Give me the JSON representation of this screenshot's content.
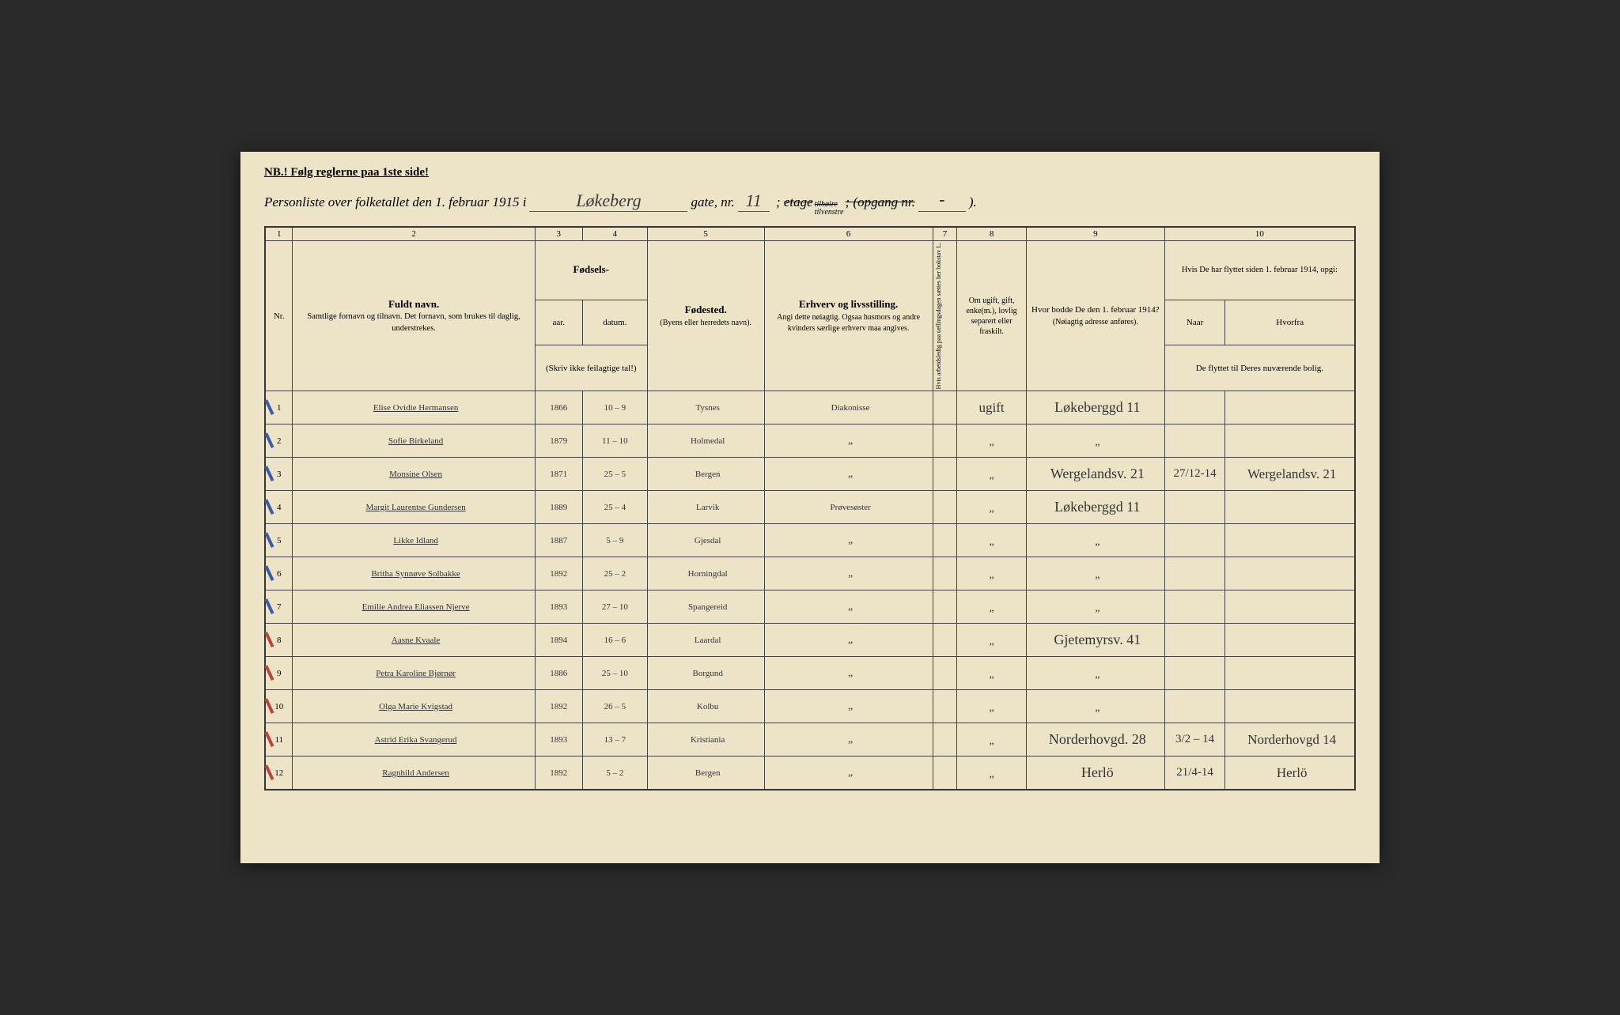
{
  "header": {
    "nb": "NB.! Følg reglerne paa 1ste side!",
    "title_prefix": "Personliste over folketallet den 1. februar 1915 i",
    "street": "Løkeberg",
    "gate_label": "gate, nr.",
    "gate_nr": "11",
    "etage_label": "etage",
    "tilhoire": "tilhøire",
    "tilvenstre": "tilvenstre",
    "opgang_label": "; (opgang nr.",
    "paren": ")."
  },
  "columns": {
    "c1": "1",
    "c2": "2",
    "c3": "3",
    "c4": "4",
    "c5": "5",
    "c6": "6",
    "c7": "7",
    "c8": "8",
    "c9": "9",
    "c10": "10",
    "nr": "Nr.",
    "navn_head": "Fuldt navn.",
    "navn_sub": "Samtlige fornavn og tilnavn. Det fornavn, som brukes til daglig, understrekes.",
    "fodsels": "Fødsels-",
    "aar": "aar.",
    "datum": "datum.",
    "fodsels_note": "(Skriv ikke feilagtige tal!)",
    "fodested": "Fødested.",
    "fodested_sub": "(Byens eller herredets navn).",
    "erhverv": "Erhverv og livsstilling.",
    "erhverv_sub": "Angi dette nøiagtig. Ogsaa husmors og andre kvinders særlige erhverv maa angives.",
    "col7": "Hvis arbeidsledig paa tællingsdagen sættes her bokstav L.",
    "col8": "Om ugift, gift, enke(m.), lovlig separert eller fraskilt.",
    "col9": "Hvor bodde De den 1. februar 1914?",
    "col9_sub": "(Nøiagtig adresse anføres).",
    "col10": "Hvis De har flyttet siden 1. februar 1914, opgi:",
    "naar": "Naar",
    "hvorfra": "Hvorfra",
    "col10_sub": "De flyttet til Deres nuværende bolig."
  },
  "rows": [
    {
      "nr": "1",
      "mark": "blue",
      "name": "Elise Ovidie Hermansen",
      "yr": "1866",
      "dt": "10 – 9",
      "place": "Tysnes",
      "occ": "Diakonisse",
      "stat": "ugift",
      "addr": "Løkeberggd 11",
      "naar": "",
      "fra": ""
    },
    {
      "nr": "2",
      "mark": "blue",
      "name": "Sofie Birkeland",
      "yr": "1879",
      "dt": "11 – 10",
      "place": "Holmedal",
      "occ": "\"",
      "stat": "\"",
      "addr": "\"",
      "naar": "",
      "fra": ""
    },
    {
      "nr": "3",
      "mark": "blue",
      "name": "Monsine Olsen",
      "yr": "1871",
      "dt": "25 – 5",
      "place": "Bergen",
      "occ": "\"",
      "stat": "\"",
      "addr": "Wergelandsv. 21",
      "naar": "27/12-14",
      "fra": "Wergelandsv. 21"
    },
    {
      "nr": "4",
      "mark": "blue",
      "name": "Margit Laurentse Gundersen",
      "yr": "1889",
      "dt": "25 – 4",
      "place": "Larvik",
      "occ": "Prøvesøster",
      "stat": "\"",
      "addr": "Løkeberggd 11",
      "naar": "",
      "fra": ""
    },
    {
      "nr": "5",
      "mark": "blue",
      "name": "Likke Idland",
      "yr": "1887",
      "dt": "5 – 9",
      "place": "Gjesdal",
      "occ": "\"",
      "stat": "\"",
      "addr": "\"",
      "naar": "",
      "fra": ""
    },
    {
      "nr": "6",
      "mark": "blue",
      "name": "Britha Synnøve Solbakke",
      "yr": "1892",
      "dt": "25 – 2",
      "place": "Horningdal",
      "occ": "\"",
      "stat": "\"",
      "addr": "\"",
      "naar": "",
      "fra": ""
    },
    {
      "nr": "7",
      "mark": "blue",
      "name": "Emilie Andrea Eliassen Njerve",
      "yr": "1893",
      "dt": "27 – 10",
      "place": "Spangereid",
      "occ": "\"",
      "stat": "\"",
      "addr": "\"",
      "naar": "",
      "fra": ""
    },
    {
      "nr": "8",
      "mark": "red",
      "name": "Aasne Kvaale",
      "yr": "1894",
      "dt": "16 – 6",
      "place": "Laardal",
      "occ": "\"",
      "stat": "\"",
      "addr": "Gjetemyrsv. 41",
      "naar": "",
      "fra": ""
    },
    {
      "nr": "9",
      "mark": "red",
      "name": "Petra Karoline Bjørnør",
      "yr": "1886",
      "dt": "25 – 10",
      "place": "Borgund",
      "occ": "\"",
      "stat": "\"",
      "addr": "\"",
      "naar": "",
      "fra": ""
    },
    {
      "nr": "10",
      "mark": "red",
      "name": "Olga Marie Kvigstad",
      "yr": "1892",
      "dt": "26 – 5",
      "place": "Kolbu",
      "occ": "\"",
      "stat": "\"",
      "addr": "\"",
      "naar": "",
      "fra": ""
    },
    {
      "nr": "11",
      "mark": "red",
      "name": "Astrid Erika Svangerud",
      "yr": "1893",
      "dt": "13 – 7",
      "place": "Kristiania",
      "occ": "\"",
      "stat": "\"",
      "addr": "Norderhovgd. 28",
      "naar": "3/2 – 14",
      "fra": "Norderhovgd 14"
    },
    {
      "nr": "12",
      "mark": "red",
      "name": "Ragnhild Andersen",
      "yr": "1892",
      "dt": "5 – 2",
      "place": "Bergen",
      "occ": "\"",
      "stat": "\"",
      "addr": "Herlö",
      "naar": "21/4-14",
      "fra": "Herlö"
    }
  ],
  "style": {
    "paper_bg": "#ede4c8",
    "ink": "#333333",
    "border": "#444444",
    "blue_pencil": "#3a5ba8",
    "red_pencil": "#b8453a",
    "handwriting_font": "Brush Script MT",
    "print_font": "Times New Roman"
  }
}
